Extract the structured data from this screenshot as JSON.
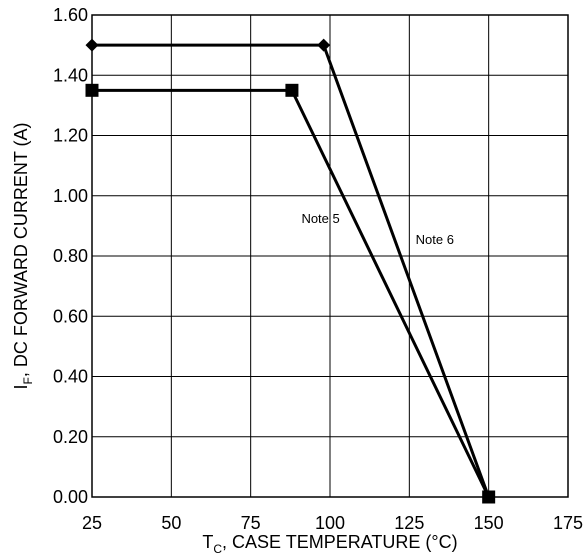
{
  "chart_data": {
    "type": "line",
    "xlim": [
      25,
      175
    ],
    "ylim": [
      0.0,
      1.6
    ],
    "x_ticks": [
      "25",
      "50",
      "75",
      "100",
      "125",
      "150",
      "175"
    ],
    "y_ticks": [
      "0.00",
      "0.20",
      "0.40",
      "0.60",
      "0.80",
      "1.00",
      "1.20",
      "1.40",
      "1.60"
    ],
    "grid": true,
    "xlabel": {
      "main": "T",
      "sub": "C",
      "rest": ", CASE TEMPERATURE (°C)"
    },
    "ylabel": {
      "main": "I",
      "sub": "F",
      "rest": ", DC FORWARD CURRENT (A)"
    },
    "series": [
      {
        "marker": "diamond",
        "points": [
          [
            25,
            1.5
          ],
          [
            98,
            1.5
          ],
          [
            150,
            0.0
          ]
        ]
      },
      {
        "marker": "square",
        "points": [
          [
            25,
            1.35
          ],
          [
            88,
            1.35
          ],
          [
            150,
            0.0
          ]
        ]
      }
    ],
    "annotations": [
      {
        "text": "Note 5",
        "x": 91,
        "y": 0.91
      },
      {
        "text": "Note 6",
        "x": 127,
        "y": 0.84
      }
    ]
  }
}
